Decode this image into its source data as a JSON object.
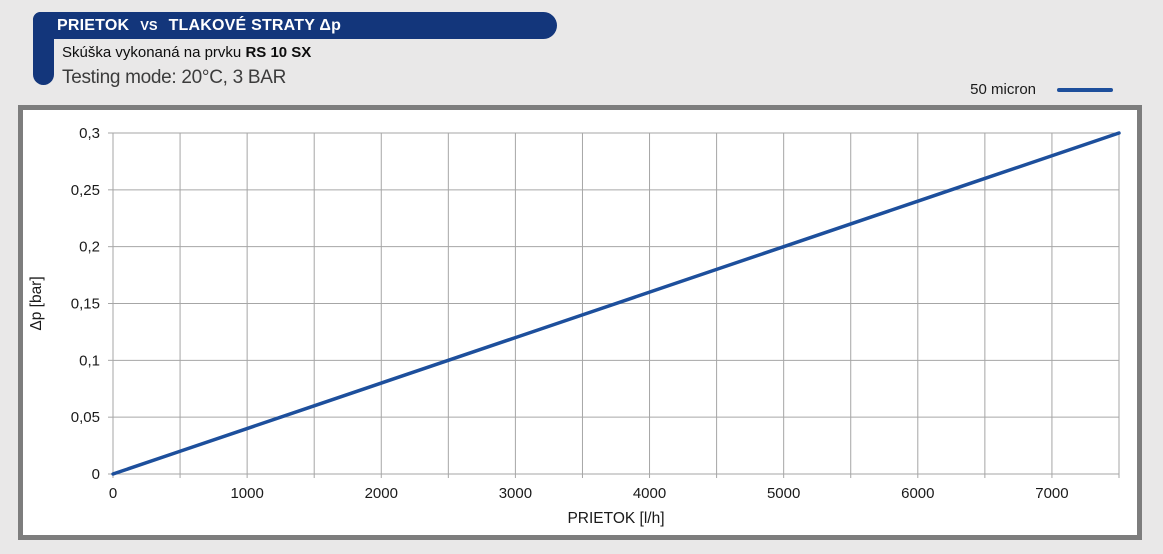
{
  "header": {
    "title_main": "PRIETOK",
    "title_vs": "VS",
    "title_rest": "TLAKOVÉ STRATY Δp",
    "subtitle_prefix": "Skúška vykonaná na prvku ",
    "subtitle_bold": "RS 10 SX",
    "testing_mode": "Testing mode: 20°C, 3 BAR"
  },
  "legend": {
    "label": "50 micron"
  },
  "colors": {
    "page_bg": "#E9E8E8",
    "banner_navy": "#13367B",
    "container_border": "#7D7D7D",
    "grid_gray": "#A6A6A6",
    "series_blue": "#1D4F9C",
    "axis_text": "#1A1A1A",
    "testing_text": "#3C3C3C"
  },
  "chart_data": {
    "type": "line",
    "title": "PRIETOK VS TLAKOVÉ STRATY Δp",
    "subtitle": "Skúška vykonaná na prvku RS 10 SX",
    "conditions": "Testing mode: 20°C, 3 BAR",
    "xlabel": "PRIETOK [l/h]",
    "ylabel": "Δp [bar]",
    "xlim": [
      0,
      7500
    ],
    "ylim": [
      0,
      0.3
    ],
    "grid": true,
    "grid_step_x": 500,
    "grid_step_y": 0.05,
    "x_tick_values": [
      0,
      1000,
      2000,
      3000,
      4000,
      5000,
      6000,
      7000
    ],
    "x_tick_labels": [
      "0",
      "1000",
      "2000",
      "3000",
      "4000",
      "5000",
      "6000",
      "7000"
    ],
    "y_tick_values": [
      0,
      0.05,
      0.1,
      0.15,
      0.2,
      0.25,
      0.3
    ],
    "y_tick_labels": [
      "0",
      "0,05",
      "0,1",
      "0,15",
      "0,2",
      "0,25",
      "0,3"
    ],
    "legend_position": "top-right-outside",
    "series": [
      {
        "name": "50 micron",
        "color": "#1D4F9C",
        "x": [
          0,
          500,
          1000,
          1500,
          2000,
          2500,
          3000,
          3500,
          4000,
          4500,
          5000,
          5500,
          6000,
          6500,
          7000,
          7500
        ],
        "y": [
          0,
          0.02,
          0.04,
          0.06,
          0.08,
          0.1,
          0.12,
          0.14,
          0.16,
          0.18,
          0.2,
          0.22,
          0.24,
          0.26,
          0.28,
          0.3
        ]
      }
    ]
  }
}
